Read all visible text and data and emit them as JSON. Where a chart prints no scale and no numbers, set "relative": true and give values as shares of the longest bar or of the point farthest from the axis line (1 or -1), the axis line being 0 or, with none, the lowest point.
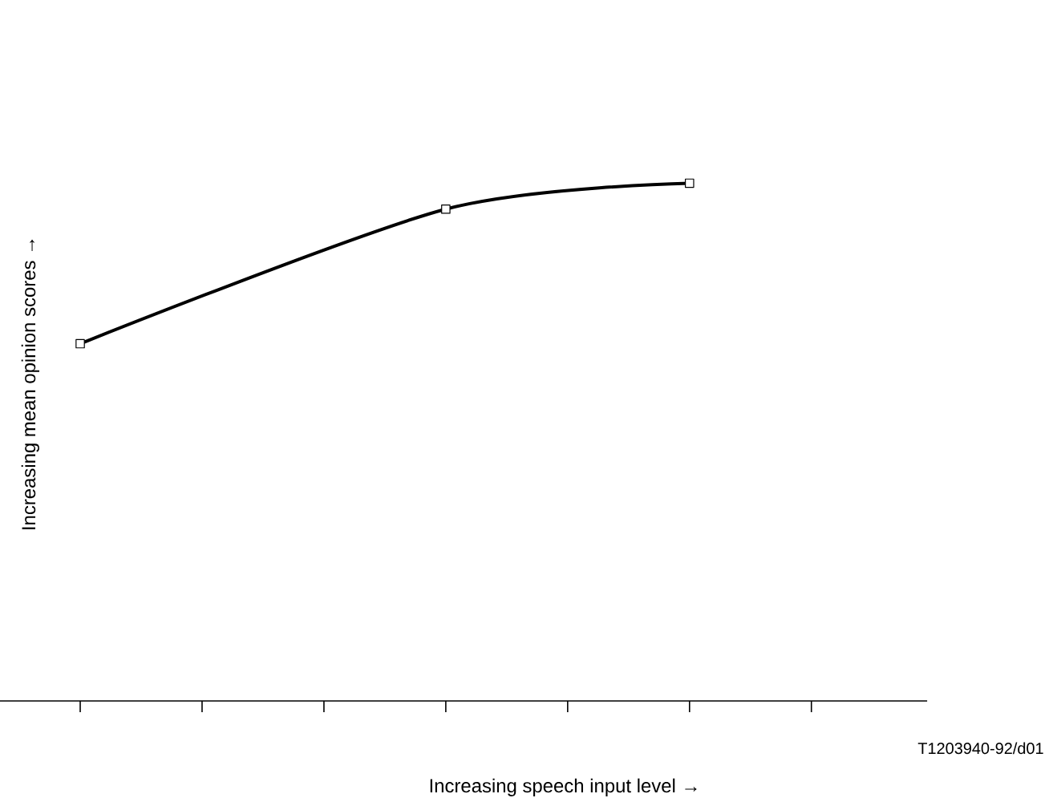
{
  "chart_data": {
    "type": "line",
    "relative": true,
    "categories": [
      null,
      null,
      null,
      null,
      null,
      null,
      null
    ],
    "values": [
      0.69,
      null,
      null,
      0.95,
      null,
      1,
      null
    ],
    "color": "#000000",
    "marker": "square",
    "line_style": "solid",
    "xlabel": "Increasing speech input level →",
    "ylabel": "Increasing mean opinion scores →",
    "annotations": [
      "T1203940-92/d01"
    ]
  }
}
